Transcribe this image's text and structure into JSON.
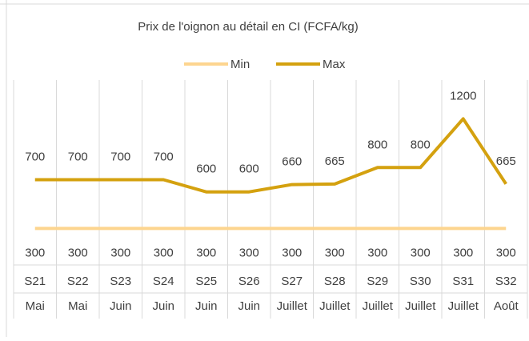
{
  "chart_data": {
    "type": "line",
    "title": "Prix de l'oignon au détail en CI (FCFA/kg)",
    "categories": [
      [
        "S21",
        "Mai"
      ],
      [
        "S22",
        "Mai"
      ],
      [
        "S23",
        "Juin"
      ],
      [
        "S24",
        "Juin"
      ],
      [
        "S25",
        "Juin"
      ],
      [
        "S26",
        "Juin"
      ],
      [
        "S27",
        "Juillet"
      ],
      [
        "S28",
        "Juillet"
      ],
      [
        "S29",
        "Juillet"
      ],
      [
        "S30",
        "Juillet"
      ],
      [
        "S31",
        "Juillet"
      ],
      [
        "S32",
        "Août"
      ]
    ],
    "series": [
      {
        "name": "Min",
        "color": "#fdd58f",
        "values": [
          300,
          300,
          300,
          300,
          300,
          300,
          300,
          300,
          300,
          300,
          300,
          300
        ]
      },
      {
        "name": "Max",
        "color": "#d4a10f",
        "values": [
          700,
          700,
          700,
          700,
          600,
          600,
          660,
          665,
          800,
          800,
          1200,
          665
        ]
      }
    ],
    "ylim": [
      0,
      1400
    ],
    "legend": "top"
  }
}
